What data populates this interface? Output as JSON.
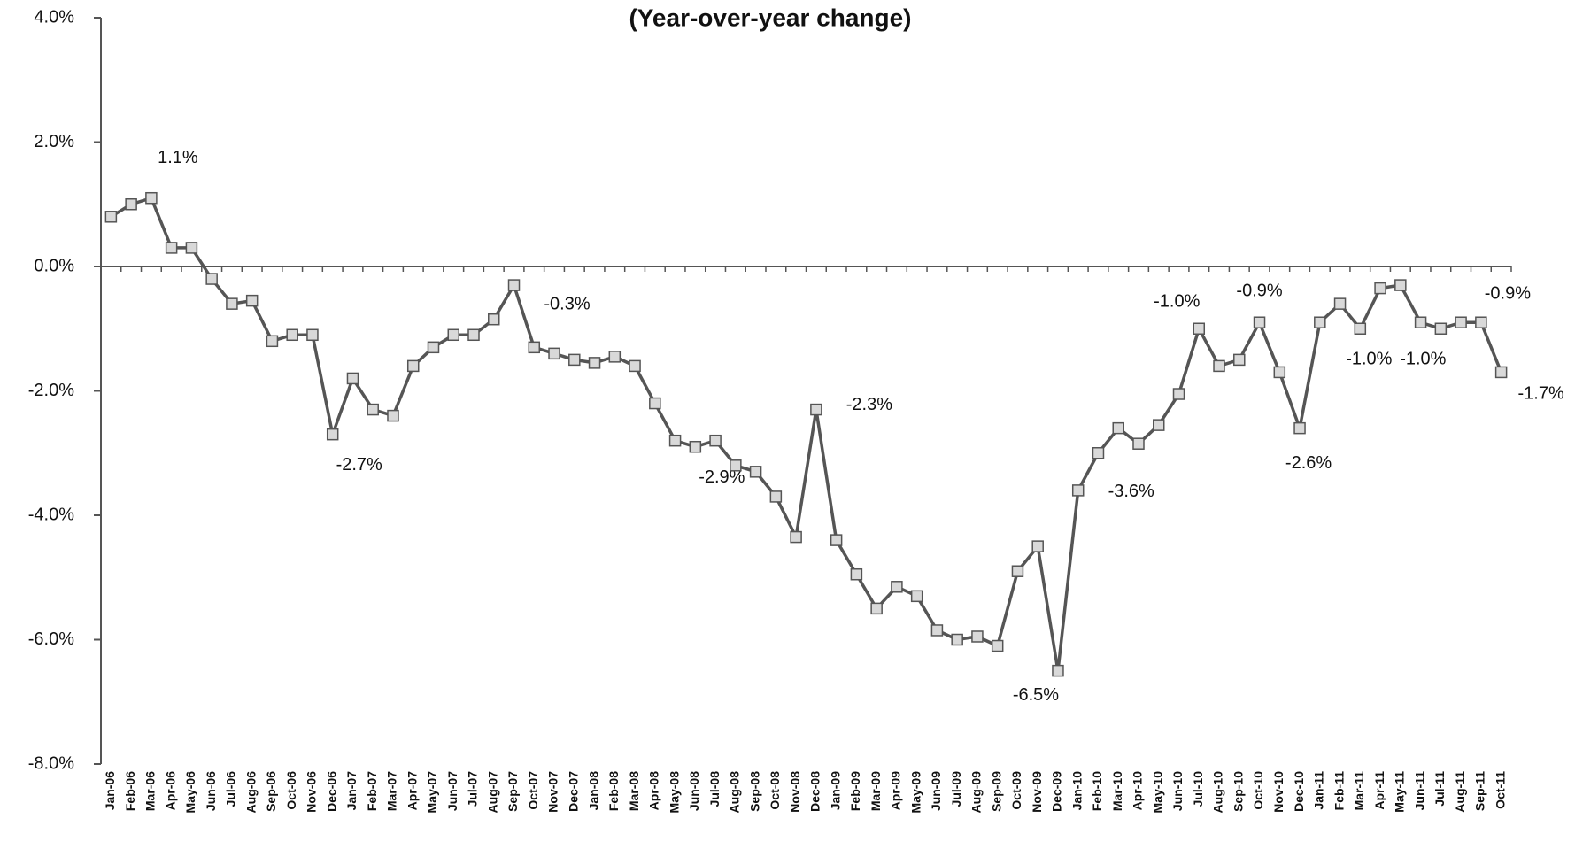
{
  "chart_data": {
    "type": "line",
    "title": "(Year-over-year change)",
    "categories": [
      "Jan-06",
      "Feb-06",
      "Mar-06",
      "Apr-06",
      "May-06",
      "Jun-06",
      "Jul-06",
      "Aug-06",
      "Sep-06",
      "Oct-06",
      "Nov-06",
      "Dec-06",
      "Jan-07",
      "Feb-07",
      "Mar-07",
      "Apr-07",
      "May-07",
      "Jun-07",
      "Jul-07",
      "Aug-07",
      "Sep-07",
      "Oct-07",
      "Nov-07",
      "Dec-07",
      "Jan-08",
      "Feb-08",
      "Mar-08",
      "Apr-08",
      "May-08",
      "Jun-08",
      "Jul-08",
      "Aug-08",
      "Sep-08",
      "Oct-08",
      "Nov-08",
      "Dec-08",
      "Jan-09",
      "Feb-09",
      "Mar-09",
      "Apr-09",
      "May-09",
      "Jun-09",
      "Jul-09",
      "Aug-09",
      "Sep-09",
      "Oct-09",
      "Nov-09",
      "Dec-09",
      "Jan-10",
      "Feb-10",
      "Mar-10",
      "Apr-10",
      "May-10",
      "Jun-10",
      "Jul-10",
      "Aug-10",
      "Sep-10",
      "Oct-10",
      "Nov-10",
      "Dec-10",
      "Jan-11",
      "Feb-11",
      "Mar-11",
      "Apr-11",
      "May-11",
      "Jun-11",
      "Jul-11",
      "Aug-11",
      "Sep-11",
      "Oct-11"
    ],
    "values": [
      0.8,
      1.0,
      1.1,
      0.3,
      0.3,
      -0.2,
      -0.6,
      -0.55,
      -1.2,
      -1.1,
      -1.1,
      -2.7,
      -1.8,
      -2.3,
      -2.4,
      -1.6,
      -1.3,
      -1.1,
      -1.1,
      -0.85,
      -0.3,
      -1.3,
      -1.4,
      -1.5,
      -1.55,
      -1.45,
      -1.6,
      -2.2,
      -2.8,
      -2.9,
      -2.8,
      -3.2,
      -3.3,
      -3.7,
      -4.35,
      -2.3,
      -4.4,
      -4.95,
      -5.5,
      -5.15,
      -5.3,
      -5.85,
      -6.0,
      -5.95,
      -6.1,
      -4.9,
      -4.5,
      -6.5,
      -3.6,
      -3.0,
      -2.6,
      -2.85,
      -2.55,
      -2.05,
      -1.0,
      -1.6,
      -1.5,
      -0.9,
      -1.7,
      -2.6,
      -0.9,
      -0.6,
      -1.0,
      -0.35,
      -0.3,
      -0.9,
      -1.0,
      -0.9,
      -0.9,
      -1.7
    ],
    "value_labels": [
      null,
      null,
      "1.1%",
      null,
      null,
      null,
      null,
      null,
      null,
      null,
      null,
      "-2.7%",
      null,
      null,
      null,
      null,
      null,
      null,
      null,
      null,
      "-0.3%",
      null,
      null,
      null,
      null,
      null,
      null,
      null,
      null,
      "-2.9%",
      null,
      null,
      null,
      null,
      null,
      "-2.3%",
      null,
      null,
      null,
      null,
      null,
      null,
      null,
      null,
      null,
      null,
      null,
      "-6.5%",
      "-3.6%",
      null,
      null,
      null,
      null,
      null,
      "-1.0%",
      null,
      null,
      "-0.9%",
      null,
      "-2.6%",
      null,
      null,
      "-1.0%",
      null,
      null,
      null,
      "-1.0%",
      null,
      "-0.9%",
      "-1.7%"
    ],
    "color": "#555555",
    "marker_color": "#d9d9d9",
    "ylim": [
      -8,
      4
    ],
    "yticks": [
      {
        "value": -8,
        "label": "-8.0%"
      },
      {
        "value": -6,
        "label": "-6.0%"
      },
      {
        "value": -4,
        "label": "-4.0%"
      },
      {
        "value": -2,
        "label": "-2.0%"
      },
      {
        "value": 0,
        "label": "0.0%"
      },
      {
        "value": 2,
        "label": "2.0%"
      },
      {
        "value": 4,
        "label": "4.0%"
      }
    ]
  }
}
